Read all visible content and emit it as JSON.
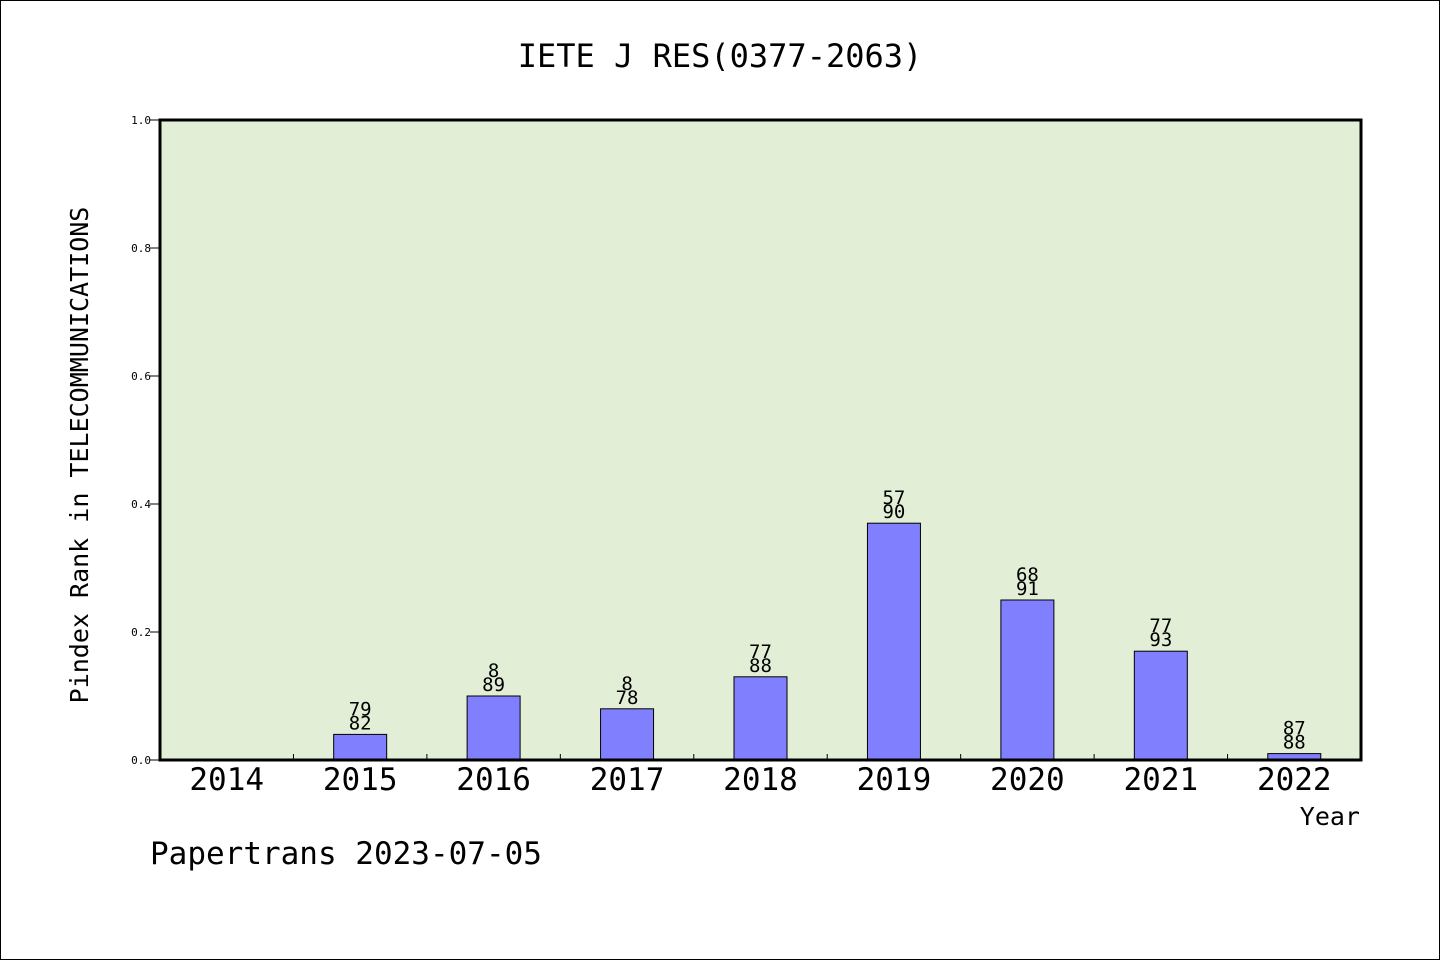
{
  "chart_data": {
    "type": "bar",
    "title": "IETE J RES(0377-2063)",
    "xlabel": "Year",
    "ylabel": "Pindex Rank in TELECOMMUNICATIONS",
    "ylim": [
      0,
      1.0
    ],
    "yticks": [
      "0.0",
      "0.2",
      "0.4",
      "0.6",
      "0.8",
      "1.0"
    ],
    "grid": false,
    "legend": "none",
    "categories": [
      "2014",
      "2015",
      "2016",
      "2017",
      "2018",
      "2019",
      "2020",
      "2021",
      "2022"
    ],
    "values": [
      0,
      0.04,
      0.1,
      0.08,
      0.13,
      0.37,
      0.25,
      0.17,
      0.01
    ],
    "bar_labels": [
      [
        "",
        ""
      ],
      [
        "79",
        "82"
      ],
      [
        "8",
        "89"
      ],
      [
        "8",
        "78"
      ],
      [
        "77",
        "88"
      ],
      [
        "57",
        "90"
      ],
      [
        "68",
        "91"
      ],
      [
        "77",
        "93"
      ],
      [
        "87",
        "88"
      ]
    ],
    "colors": {
      "plot_background": "#e2efd6",
      "bar_fill": "#8080ff",
      "bar_stroke": "#000000"
    }
  },
  "footer": {
    "source": "Papertrans 2023-07-05"
  }
}
